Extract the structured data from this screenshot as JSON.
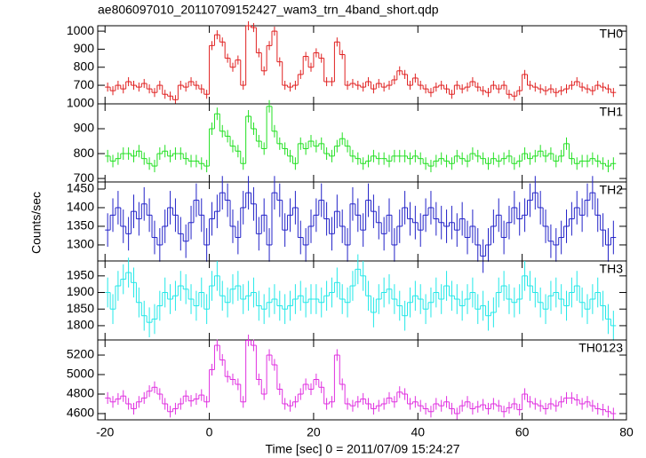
{
  "chart_data": {
    "type": "step",
    "title": "ae806097010_20110709152427_wam3_trn_4band_short.qdp",
    "xlabel": "Time [sec] 0 = 2011/07/09 15:24:27",
    "ylabel": "Counts/sec",
    "xlim": [
      -21.4,
      80
    ],
    "xticks": [
      -20,
      0,
      20,
      40,
      60,
      80
    ],
    "x": [
      -19.5,
      -18.5,
      -17.5,
      -16.5,
      -15.5,
      -14.5,
      -13.5,
      -12.5,
      -11.5,
      -10.5,
      -9.5,
      -8.5,
      -7.5,
      -6.5,
      -5.5,
      -4.5,
      -3.5,
      -2.5,
      -1.5,
      -0.5,
      0.5,
      1.5,
      2.5,
      3.5,
      4.5,
      5.5,
      6.5,
      7.5,
      8.5,
      9.5,
      10.5,
      11.5,
      12.5,
      13.5,
      14.5,
      15.5,
      16.5,
      17.5,
      18.5,
      19.5,
      20.5,
      21.5,
      22.5,
      23.5,
      24.5,
      25.5,
      26.5,
      27.5,
      28.5,
      29.5,
      30.5,
      31.5,
      32.5,
      33.5,
      34.5,
      35.5,
      36.5,
      37.5,
      38.5,
      39.5,
      40.5,
      41.5,
      42.5,
      43.5,
      44.5,
      45.5,
      46.5,
      47.5,
      48.5,
      49.5,
      50.5,
      51.5,
      52.5,
      53.5,
      54.5,
      55.5,
      56.5,
      57.5,
      58.5,
      59.5,
      60.5,
      61.5,
      62.5,
      63.5,
      64.5,
      65.5,
      66.5,
      67.5,
      68.5,
      69.5,
      70.5,
      71.5,
      72.5,
      73.5,
      74.5,
      75.5,
      76.5,
      77.5
    ],
    "panels": [
      {
        "name": "TH0",
        "color": "#e02020",
        "ylim": [
          597,
          1030
        ],
        "yticks": [
          700,
          800,
          900,
          1000
        ],
        "error": 25,
        "values": [
          690,
          670,
          700,
          680,
          720,
          700,
          690,
          710,
          680,
          660,
          700,
          650,
          640,
          620,
          700,
          690,
          720,
          700,
          680,
          650,
          920,
          980,
          940,
          850,
          800,
          840,
          700,
          1030,
          1020,
          880,
          780,
          920,
          1000,
          830,
          700,
          690,
          700,
          760,
          860,
          800,
          880,
          850,
          720,
          720,
          940,
          870,
          700,
          710,
          700,
          690,
          720,
          680,
          710,
          690,
          700,
          730,
          780,
          760,
          700,
          740,
          700,
          680,
          660,
          690,
          700,
          680,
          650,
          700,
          680,
          690,
          720,
          690,
          670,
          660,
          700,
          680,
          700,
          650,
          640,
          670,
          760,
          700,
          690,
          680,
          670,
          680,
          660,
          670,
          680,
          700,
          720,
          690,
          680,
          670,
          700,
          690,
          680,
          660
        ]
      },
      {
        "name": "TH1",
        "color": "#22e022",
        "ylim": [
          686,
          1000
        ],
        "yticks": [
          700,
          800,
          900,
          1000
        ],
        "error": 25,
        "values": [
          790,
          770,
          780,
          800,
          800,
          790,
          810,
          780,
          760,
          750,
          800,
          810,
          790,
          800,
          800,
          780,
          770,
          770,
          760,
          750,
          900,
          960,
          890,
          870,
          830,
          810,
          760,
          950,
          900,
          850,
          820,
          990,
          890,
          840,
          820,
          790,
          760,
          840,
          820,
          850,
          830,
          840,
          800,
          790,
          830,
          860,
          830,
          790,
          780,
          760,
          770,
          790,
          780,
          780,
          770,
          790,
          790,
          790,
          780,
          790,
          780,
          760,
          750,
          770,
          780,
          770,
          760,
          790,
          780,
          770,
          800,
          790,
          780,
          760,
          780,
          770,
          780,
          790,
          760,
          770,
          800,
          780,
          790,
          810,
          790,
          800,
          770,
          790,
          840,
          780,
          760,
          770,
          770,
          780,
          770,
          760,
          750,
          760
        ]
      },
      {
        "name": "TH2",
        "color": "#2222c8",
        "ylim": [
          1257,
          1469
        ],
        "yticks": [
          1300,
          1350,
          1400,
          1450
        ],
        "error": 45,
        "values": [
          1340,
          1380,
          1400,
          1350,
          1330,
          1390,
          1370,
          1410,
          1380,
          1320,
          1300,
          1350,
          1400,
          1380,
          1330,
          1310,
          1360,
          1420,
          1380,
          1300,
          1370,
          1390,
          1440,
          1420,
          1350,
          1320,
          1400,
          1440,
          1410,
          1330,
          1380,
          1300,
          1440,
          1420,
          1340,
          1380,
          1400,
          1320,
          1300,
          1350,
          1380,
          1420,
          1370,
          1330,
          1390,
          1350,
          1300,
          1410,
          1380,
          1340,
          1420,
          1390,
          1360,
          1330,
          1380,
          1300,
          1350,
          1400,
          1370,
          1360,
          1340,
          1380,
          1400,
          1370,
          1360,
          1350,
          1360,
          1340,
          1370,
          1320,
          1350,
          1300,
          1270,
          1300,
          1350,
          1380,
          1320,
          1360,
          1400,
          1370,
          1380,
          1420,
          1440,
          1400,
          1350,
          1310,
          1300,
          1320,
          1350,
          1370,
          1400,
          1380,
          1420,
          1440,
          1380,
          1340,
          1300,
          1320
        ]
      },
      {
        "name": "TH3",
        "color": "#22e8e8",
        "ylim": [
          1757,
          1995
        ],
        "yticks": [
          1800,
          1850,
          1900,
          1950
        ],
        "error": 45,
        "values": [
          1900,
          1850,
          1920,
          1940,
          1960,
          1930,
          1870,
          1830,
          1810,
          1820,
          1860,
          1900,
          1880,
          1890,
          1920,
          1910,
          1880,
          1860,
          1900,
          1850,
          1920,
          1950,
          1890,
          1870,
          1910,
          1920,
          1880,
          1890,
          1900,
          1860,
          1850,
          1870,
          1880,
          1860,
          1850,
          1860,
          1880,
          1890,
          1870,
          1880,
          1880,
          1870,
          1890,
          1900,
          1930,
          1880,
          1870,
          1920,
          1970,
          1950,
          1890,
          1840,
          1880,
          1900,
          1910,
          1880,
          1860,
          1830,
          1870,
          1890,
          1880,
          1850,
          1870,
          1900,
          1880,
          1920,
          1890,
          1880,
          1860,
          1880,
          1900,
          1850,
          1860,
          1830,
          1840,
          1900,
          1920,
          1880,
          1870,
          1880,
          1950,
          1920,
          1900,
          1870,
          1850,
          1890,
          1900,
          1880,
          1860,
          1900,
          1920,
          1870,
          1850,
          1880,
          1900,
          1860,
          1820,
          1800
        ]
      },
      {
        "name": "TH0123",
        "color": "#e030e0",
        "ylim": [
          4536,
          5355
        ],
        "yticks": [
          4600,
          4800,
          5000,
          5200
        ],
        "error": 60,
        "values": [
          4760,
          4720,
          4750,
          4780,
          4700,
          4650,
          4720,
          4760,
          4830,
          4870,
          4800,
          4700,
          4620,
          4650,
          4700,
          4780,
          4730,
          4750,
          4790,
          4720,
          5050,
          5300,
          5150,
          4980,
          4950,
          4900,
          4720,
          5350,
          5300,
          4950,
          4800,
          5200,
          5100,
          4850,
          4700,
          4680,
          4720,
          4800,
          4900,
          4850,
          4950,
          4870,
          4700,
          4720,
          5200,
          4900,
          4700,
          4680,
          4720,
          4750,
          4700,
          4650,
          4680,
          4700,
          4760,
          4720,
          4820,
          4800,
          4700,
          4720,
          4680,
          4650,
          4620,
          4700,
          4680,
          4720,
          4650,
          4600,
          4680,
          4720,
          4650,
          4670,
          4690,
          4650,
          4700,
          4680,
          4620,
          4660,
          4700,
          4640,
          4800,
          4720,
          4700,
          4680,
          4650,
          4700,
          4680,
          4720,
          4760,
          4760,
          4740,
          4700,
          4720,
          4680,
          4650,
          4640,
          4620,
          4600
        ]
      }
    ]
  }
}
